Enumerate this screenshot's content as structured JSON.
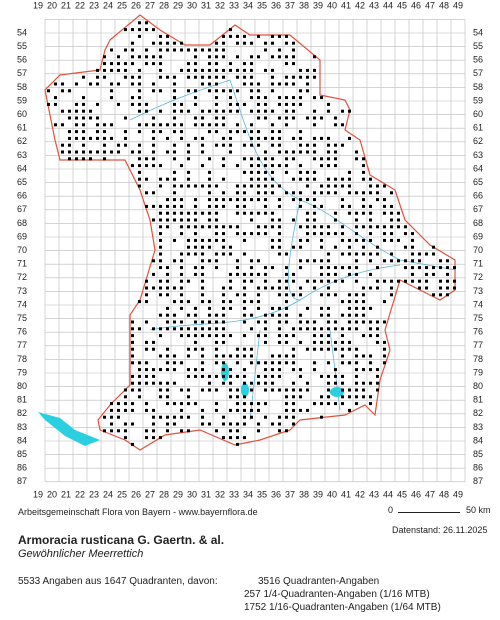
{
  "grid": {
    "columns": [
      19,
      20,
      21,
      22,
      23,
      24,
      25,
      26,
      27,
      28,
      29,
      30,
      31,
      32,
      33,
      34,
      35,
      36,
      37,
      38,
      39,
      40,
      41,
      42,
      43,
      44,
      45,
      46,
      47,
      48,
      49
    ],
    "rows": [
      54,
      55,
      56,
      57,
      58,
      59,
      60,
      61,
      62,
      63,
      64,
      65,
      66,
      67,
      68,
      69,
      70,
      71,
      72,
      73,
      74,
      75,
      76,
      77,
      78,
      79,
      80,
      81,
      82,
      83,
      84,
      85,
      86,
      87
    ]
  },
  "footer": {
    "source": "Arbeitsgemeinschaft Flora von Bayern - www.bayernflora.de",
    "scale_start": "0",
    "scale_end": "50 km",
    "date": "Datenstand: 26.11.2025",
    "species": "Armoracia rusticana G. Gaertn. & al.",
    "common_name": "Gewöhnlicher Meerrettich",
    "summary": "5533 Angaben aus 1647 Quadranten, davon:",
    "counts": [
      "3516 Quadranten-Angaben",
      "257 1/4-Quadranten-Angaben (1/16 MTB)",
      "1752 1/16-Quadranten-Angaben (1/64 MTB)"
    ]
  }
}
